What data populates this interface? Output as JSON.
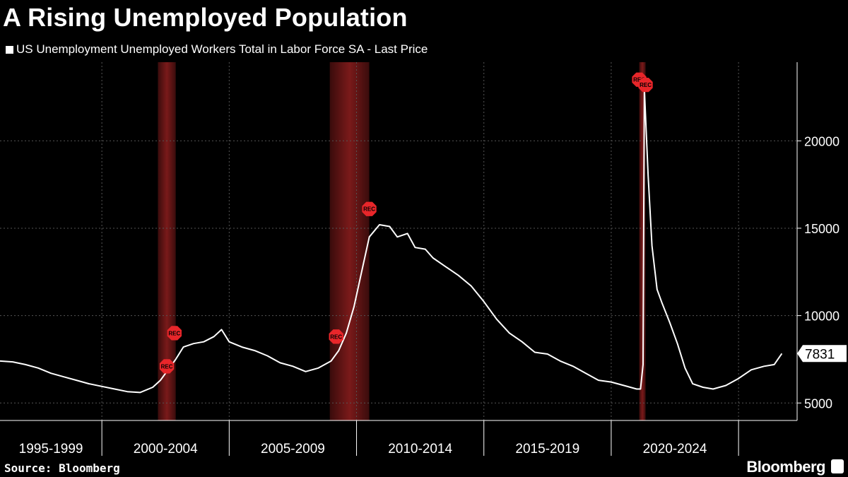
{
  "header": {
    "title": "A Rising Unemployed Population",
    "legend_label": "US Unemployment Unemployed Workers Total in Labor Force SA - Last Price"
  },
  "footer": {
    "source": "Source: Bloomberg",
    "brand": "Bloomberg"
  },
  "colors": {
    "background": "#000000",
    "line": "#ffffff",
    "recession_band": "#7a1a1a",
    "marker": "#e8262a",
    "grid": "#555555"
  },
  "chart_data": {
    "type": "line",
    "title": "A Rising Unemployed Population",
    "series": [
      {
        "name": "US Unemployment Unemployed Workers Total in Labor Force SA - Last Price",
        "points": [
          [
            1995.0,
            7400
          ],
          [
            1995.5,
            7350
          ],
          [
            1996.0,
            7200
          ],
          [
            1996.5,
            7000
          ],
          [
            1997.0,
            6700
          ],
          [
            1997.5,
            6500
          ],
          [
            1998.0,
            6300
          ],
          [
            1998.5,
            6100
          ],
          [
            1999.0,
            5950
          ],
          [
            1999.5,
            5800
          ],
          [
            2000.0,
            5650
          ],
          [
            2000.5,
            5600
          ],
          [
            2001.0,
            5900
          ],
          [
            2001.3,
            6300
          ],
          [
            2001.6,
            6900
          ],
          [
            2001.9,
            7500
          ],
          [
            2002.2,
            8200
          ],
          [
            2002.6,
            8400
          ],
          [
            2003.0,
            8500
          ],
          [
            2003.4,
            8800
          ],
          [
            2003.7,
            9200
          ],
          [
            2004.0,
            8500
          ],
          [
            2004.5,
            8200
          ],
          [
            2005.0,
            8000
          ],
          [
            2005.5,
            7700
          ],
          [
            2006.0,
            7300
          ],
          [
            2006.5,
            7100
          ],
          [
            2007.0,
            6800
          ],
          [
            2007.5,
            7000
          ],
          [
            2008.0,
            7400
          ],
          [
            2008.3,
            8000
          ],
          [
            2008.6,
            9000
          ],
          [
            2008.9,
            10500
          ],
          [
            2009.2,
            12500
          ],
          [
            2009.5,
            14500
          ],
          [
            2009.9,
            15200
          ],
          [
            2010.3,
            15100
          ],
          [
            2010.6,
            14500
          ],
          [
            2011.0,
            14700
          ],
          [
            2011.3,
            13900
          ],
          [
            2011.7,
            13800
          ],
          [
            2012.0,
            13300
          ],
          [
            2012.5,
            12800
          ],
          [
            2013.0,
            12300
          ],
          [
            2013.5,
            11700
          ],
          [
            2014.0,
            10800
          ],
          [
            2014.5,
            9800
          ],
          [
            2015.0,
            9000
          ],
          [
            2015.5,
            8500
          ],
          [
            2016.0,
            7900
          ],
          [
            2016.5,
            7800
          ],
          [
            2017.0,
            7400
          ],
          [
            2017.5,
            7100
          ],
          [
            2018.0,
            6700
          ],
          [
            2018.5,
            6300
          ],
          [
            2019.0,
            6200
          ],
          [
            2019.5,
            6000
          ],
          [
            2020.0,
            5800
          ],
          [
            2020.15,
            5800
          ],
          [
            2020.25,
            7200
          ],
          [
            2020.3,
            23000
          ],
          [
            2020.45,
            18000
          ],
          [
            2020.6,
            14000
          ],
          [
            2020.8,
            11500
          ],
          [
            2021.0,
            10700
          ],
          [
            2021.3,
            9600
          ],
          [
            2021.6,
            8400
          ],
          [
            2021.9,
            7000
          ],
          [
            2022.2,
            6100
          ],
          [
            2022.6,
            5900
          ],
          [
            2023.0,
            5800
          ],
          [
            2023.5,
            6000
          ],
          [
            2024.0,
            6400
          ],
          [
            2024.5,
            6900
          ],
          [
            2025.0,
            7100
          ],
          [
            2025.4,
            7200
          ],
          [
            2025.7,
            7831
          ]
        ]
      }
    ],
    "recessions": [
      {
        "start": 2001.2,
        "end": 2001.9
      },
      {
        "start": 2007.95,
        "end": 2009.5
      },
      {
        "start": 2020.1,
        "end": 2020.35
      }
    ],
    "rec_markers": [
      {
        "x": 2001.85,
        "y": 9000,
        "label": "REC"
      },
      {
        "x": 2001.55,
        "y": 7100,
        "label": "REC"
      },
      {
        "x": 2008.2,
        "y": 8800,
        "label": "REC"
      },
      {
        "x": 2009.5,
        "y": 16100,
        "label": "REC"
      },
      {
        "x": 2020.1,
        "y": 23500,
        "label": "REC"
      },
      {
        "x": 2020.35,
        "y": 23200,
        "label": "REC"
      }
    ],
    "x_category_labels": [
      "1995-1999",
      "2000-2004",
      "2005-2009",
      "2010-2014",
      "2015-2019",
      "2020-2024"
    ],
    "x_boundaries": [
      1999,
      2004,
      2009,
      2014,
      2019,
      2024
    ],
    "y_ticks": [
      5000,
      10000,
      15000,
      20000
    ],
    "ylim": [
      4000,
      24500
    ],
    "xlim": [
      1995,
      2026.3
    ],
    "last_value": "7831",
    "last_value_y": 7831,
    "grid": true
  }
}
